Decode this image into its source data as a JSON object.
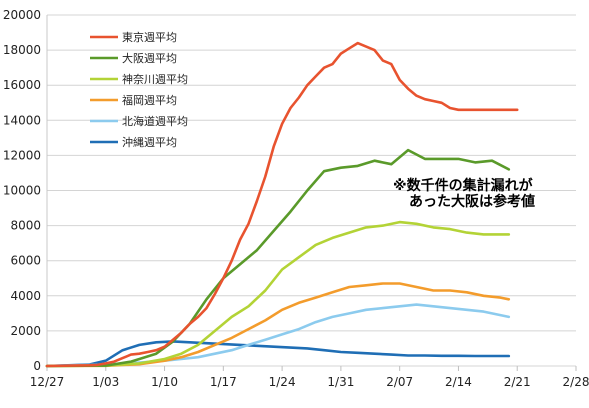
{
  "chart_data": {
    "type": "line",
    "title": "",
    "xlabel": "",
    "ylabel": "",
    "ylim": [
      0,
      20000
    ],
    "yticks": [
      0,
      2000,
      4000,
      6000,
      8000,
      10000,
      12000,
      14000,
      16000,
      18000,
      20000
    ],
    "xlim": [
      0,
      63
    ],
    "xticks": [
      {
        "day": 0,
        "label": "12/27"
      },
      {
        "day": 7,
        "label": "1/03"
      },
      {
        "day": 14,
        "label": "1/10"
      },
      {
        "day": 21,
        "label": "1/17"
      },
      {
        "day": 28,
        "label": "1/24"
      },
      {
        "day": 35,
        "label": "1/31"
      },
      {
        "day": 42,
        "label": "2/07"
      },
      {
        "day": 49,
        "label": "2/14"
      },
      {
        "day": 56,
        "label": "2/21"
      },
      {
        "day": 63,
        "label": "2/28"
      }
    ],
    "grid": "horizontal",
    "legend_position": "top-left",
    "annotation": [
      "※数千件の集計漏れが",
      "あった大阪は参考値"
    ],
    "series": [
      {
        "name": "東京週平均",
        "color": "#e8532f",
        "x": [
          0,
          3,
          5,
          6,
          7,
          8,
          9,
          10,
          11,
          12,
          13,
          14,
          15,
          16,
          17,
          18,
          19,
          20,
          21,
          22,
          23,
          24,
          25,
          26,
          27,
          28,
          29,
          30,
          31,
          32,
          33,
          34,
          35,
          36,
          37,
          38,
          39,
          40,
          41,
          42,
          43,
          44,
          45,
          46,
          47,
          48,
          49,
          50,
          51,
          52,
          53,
          54,
          55,
          56
        ],
        "values": [
          0,
          20,
          40,
          60,
          150,
          250,
          450,
          650,
          700,
          800,
          900,
          1100,
          1500,
          1900,
          2400,
          2800,
          3300,
          4100,
          5000,
          6000,
          7200,
          8100,
          9400,
          10800,
          12500,
          13800,
          14700,
          15300,
          16000,
          16500,
          17000,
          17200,
          17800,
          18100,
          18400,
          18200,
          18000,
          17400,
          17200,
          16300,
          15800,
          15400,
          15200,
          15100,
          15000,
          14700,
          14600,
          14600,
          14600,
          14600,
          14600,
          14600,
          14600,
          14600
        ]
      },
      {
        "name": "大阪週平均",
        "color": "#5a9a2a",
        "x": [
          0,
          7,
          10,
          13,
          15,
          17,
          19,
          21,
          23,
          25,
          27,
          29,
          31,
          33,
          35,
          37,
          39,
          41,
          43,
          45,
          47,
          49,
          51,
          53,
          55
        ],
        "values": [
          0,
          20,
          250,
          700,
          1400,
          2400,
          3800,
          5000,
          5800,
          6600,
          7700,
          8800,
          10000,
          11100,
          11300,
          11400,
          11700,
          11500,
          12300,
          11800,
          11800,
          11800,
          11600,
          11700,
          11200
        ]
      },
      {
        "name": "神奈川週平均",
        "color": "#b3d336",
        "x": [
          0,
          7,
          11,
          14,
          16,
          18,
          20,
          22,
          24,
          26,
          28,
          30,
          32,
          34,
          36,
          38,
          40,
          42,
          44,
          46,
          48,
          50,
          52,
          54,
          55
        ],
        "values": [
          0,
          20,
          150,
          400,
          700,
          1200,
          2000,
          2800,
          3400,
          4300,
          5500,
          6200,
          6900,
          7300,
          7600,
          7900,
          8000,
          8200,
          8100,
          7900,
          7800,
          7600,
          7500,
          7500,
          7500
        ]
      },
      {
        "name": "福岡週平均",
        "color": "#f39c2c",
        "x": [
          0,
          7,
          11,
          14,
          16,
          18,
          20,
          22,
          24,
          26,
          28,
          30,
          32,
          34,
          36,
          38,
          40,
          42,
          44,
          46,
          48,
          50,
          52,
          54,
          55
        ],
        "values": [
          0,
          10,
          100,
          300,
          500,
          800,
          1200,
          1600,
          2100,
          2600,
          3200,
          3600,
          3900,
          4200,
          4500,
          4600,
          4700,
          4700,
          4500,
          4300,
          4300,
          4200,
          4000,
          3900,
          3800
        ]
      },
      {
        "name": "北海道週平均",
        "color": "#8ccbee",
        "x": [
          0,
          7,
          11,
          14,
          16,
          18,
          20,
          22,
          24,
          26,
          28,
          30,
          32,
          34,
          36,
          38,
          40,
          42,
          44,
          46,
          48,
          50,
          52,
          54,
          55
        ],
        "values": [
          0,
          80,
          200,
          300,
          400,
          500,
          700,
          900,
          1200,
          1500,
          1800,
          2100,
          2500,
          2800,
          3000,
          3200,
          3300,
          3400,
          3500,
          3400,
          3300,
          3200,
          3100,
          2900,
          2800
        ]
      },
      {
        "name": "沖縄週平均",
        "color": "#1f6eb5",
        "x": [
          0,
          5,
          7,
          9,
          11,
          13,
          15,
          17,
          19,
          21,
          23,
          25,
          27,
          29,
          31,
          33,
          35,
          37,
          39,
          41,
          43,
          45,
          47,
          49,
          51,
          53,
          55
        ],
        "values": [
          0,
          80,
          300,
          900,
          1200,
          1350,
          1400,
          1350,
          1300,
          1250,
          1200,
          1150,
          1100,
          1050,
          1000,
          900,
          800,
          750,
          700,
          650,
          600,
          600,
          580,
          580,
          570,
          570,
          570
        ]
      }
    ]
  }
}
